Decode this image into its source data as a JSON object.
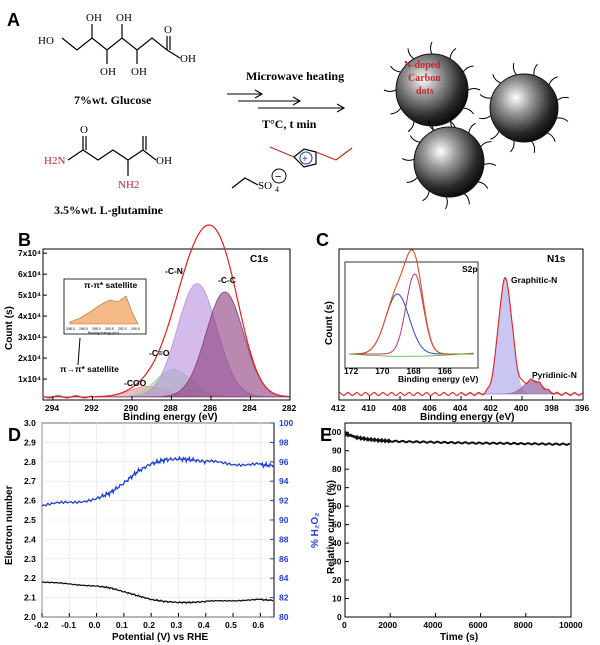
{
  "panels": {
    "a": "A",
    "b": "B",
    "c": "C",
    "d": "D",
    "e": "E"
  },
  "scheme": {
    "glucose_label": "7%wt. Glucose",
    "glutamine_label": "3.5%wt. L-glutamine",
    "arrow_top": "Microwave heating",
    "arrow_bottom": "T°C, t min",
    "dot_label": [
      "N-doped",
      "Carbon",
      "dots"
    ],
    "so4": "SO",
    "so4_sub": "4",
    "glucose_atoms": [
      "OH",
      "OH",
      "HO",
      "OH",
      "OH",
      "O",
      "OH"
    ],
    "glutamine_atoms": [
      "O",
      "OH",
      "H2N",
      "NH2"
    ],
    "colors": {
      "nitrogen_red": "#c0282a",
      "ionic_blue": "#1a3a9c"
    }
  },
  "chart_data": [
    {
      "id": "B",
      "type": "area",
      "title": "C1s",
      "xlabel": "Binding energy (eV)",
      "ylabel": "Count (s)",
      "xlim": [
        294.5,
        282
      ],
      "xticks": [
        294,
        292,
        290,
        288,
        286,
        284,
        282
      ],
      "ylim": [
        0,
        72000
      ],
      "yticks": [
        10000,
        20000,
        30000,
        40000,
        50000,
        60000,
        70000
      ],
      "ytick_labels": [
        "1x10⁴",
        "2x10⁴",
        "3x10⁴",
        "4x10⁴",
        "5x10⁴",
        "6x10⁴",
        "7x10⁴"
      ],
      "peaks": [
        {
          "name": "-C-C",
          "center": 285.3,
          "height": 50000,
          "width": 0.95,
          "color": "#8a3a7a"
        },
        {
          "name": "-C-N",
          "center": 286.7,
          "height": 54000,
          "width": 1.0,
          "color": "#b88ee0"
        },
        {
          "name": "-C=O",
          "center": 287.9,
          "height": 13000,
          "width": 0.9,
          "color": "#9fd88f"
        },
        {
          "name": "-COO",
          "center": 289.2,
          "height": 5000,
          "width": 0.9,
          "color": "#f08c96"
        }
      ],
      "baseline": 1500,
      "annotation": "π→π* satellite",
      "inset": {
        "legend": "π-π* satellite",
        "xlabel": "Binding energy (eV)",
        "xticks": [
          "298.0",
          "296.5",
          "295.0",
          "293.5",
          "292.0",
          "290.5"
        ]
      }
    },
    {
      "id": "C",
      "type": "area",
      "title": "N1s",
      "xlabel": "Binding energy (eV)",
      "ylabel": "Count (s)",
      "xlim": [
        412,
        396
      ],
      "xticks": [
        412,
        410,
        408,
        406,
        404,
        402,
        400,
        398,
        396
      ],
      "peaks": [
        {
          "name": "Graphitic-N",
          "center": 401.1,
          "height": 100,
          "width": 0.45,
          "color": "#b7b4ee"
        },
        {
          "name": "Pyridinic-N",
          "center": 399.3,
          "height": 12,
          "width": 0.6,
          "color": "#9a6aa6"
        }
      ],
      "inset": {
        "title": "S2p",
        "xlabel": "Binding energy (eV)",
        "xlim": [
          172,
          164
        ],
        "xticks": [
          172,
          170,
          168,
          166
        ],
        "peaks": [
          {
            "center": 168.9,
            "height": 60,
            "width": 0.75,
            "color": "#3048c8"
          },
          {
            "center": 167.8,
            "height": 80,
            "width": 0.55,
            "color": "#c03a60"
          }
        ]
      }
    },
    {
      "id": "D",
      "type": "line",
      "xlabel": "Potential (V) vs RHE",
      "ylabel": "Electron number",
      "y2label": "% H₂O₂",
      "xlim": [
        -0.2,
        0.65
      ],
      "xticks": [
        -0.2,
        -0.1,
        0.0,
        0.1,
        0.2,
        0.3,
        0.4,
        0.5,
        0.6
      ],
      "ylim": [
        2.0,
        3.0
      ],
      "yticks": [
        2.0,
        2.1,
        2.2,
        2.3,
        2.4,
        2.5,
        2.6,
        2.7,
        2.8,
        2.9,
        3.0
      ],
      "y2lim": [
        80,
        100
      ],
      "y2ticks": [
        80,
        82,
        84,
        86,
        88,
        90,
        92,
        94,
        96,
        98,
        100
      ],
      "series": [
        {
          "name": "Electron number",
          "axis": "left",
          "color": "#111111",
          "x": [
            -0.2,
            -0.1,
            0.0,
            0.05,
            0.1,
            0.15,
            0.2,
            0.25,
            0.3,
            0.35,
            0.4,
            0.5,
            0.6,
            0.65
          ],
          "y": [
            2.18,
            2.17,
            2.16,
            2.15,
            2.13,
            2.11,
            2.09,
            2.08,
            2.075,
            2.075,
            2.08,
            2.085,
            2.09,
            2.085
          ]
        },
        {
          "name": "% H2O2",
          "axis": "right",
          "color": "#1f3fd0",
          "x": [
            -0.2,
            -0.1,
            0.0,
            0.05,
            0.1,
            0.15,
            0.2,
            0.25,
            0.3,
            0.35,
            0.4,
            0.5,
            0.6,
            0.65
          ],
          "y": [
            91.5,
            91.8,
            92.2,
            92.8,
            93.8,
            95.0,
            95.8,
            96.2,
            96.3,
            96.2,
            96.0,
            95.8,
            95.7,
            95.6
          ]
        }
      ]
    },
    {
      "id": "E",
      "type": "line",
      "xlabel": "Time (s)",
      "ylabel": "Relative current (%)",
      "xlim": [
        0,
        10000
      ],
      "xticks": [
        0,
        2000,
        4000,
        6000,
        8000,
        10000
      ],
      "ylim": [
        0,
        105
      ],
      "yticks": [
        0,
        10,
        20,
        30,
        40,
        50,
        60,
        70,
        80,
        90,
        100
      ],
      "series": [
        {
          "name": "current",
          "color": "#111111",
          "x": [
            0,
            200,
            500,
            1000,
            1500,
            2000,
            3000,
            4000,
            5000,
            6000,
            7000,
            8000,
            9000,
            10000
          ],
          "y": [
            100,
            98.5,
            97.2,
            96.2,
            95.6,
            95.2,
            94.8,
            94.6,
            94.3,
            94.1,
            94.0,
            93.8,
            93.6,
            93.5
          ]
        }
      ]
    }
  ]
}
